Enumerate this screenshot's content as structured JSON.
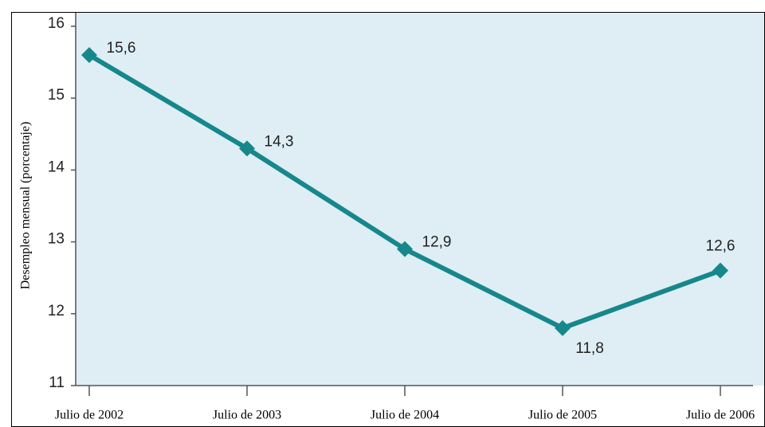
{
  "chart_data": {
    "type": "line",
    "ylabel": "Desempleo mensual (porcentaje)",
    "categories": [
      "Julio de 2002",
      "Julio de 2003",
      "Julio de 2004",
      "Julio de 2005",
      "Julio de 2006"
    ],
    "series": [
      {
        "color": "#16878b",
        "values": [
          15.6,
          14.3,
          12.9,
          11.8,
          12.6
        ],
        "value_labels": [
          "15,6",
          "14,3",
          "12,9",
          "11,8",
          "12,6"
        ]
      }
    ],
    "ylim": [
      11,
      16
    ],
    "yticks": [
      11,
      12,
      13,
      14,
      15,
      16
    ]
  }
}
